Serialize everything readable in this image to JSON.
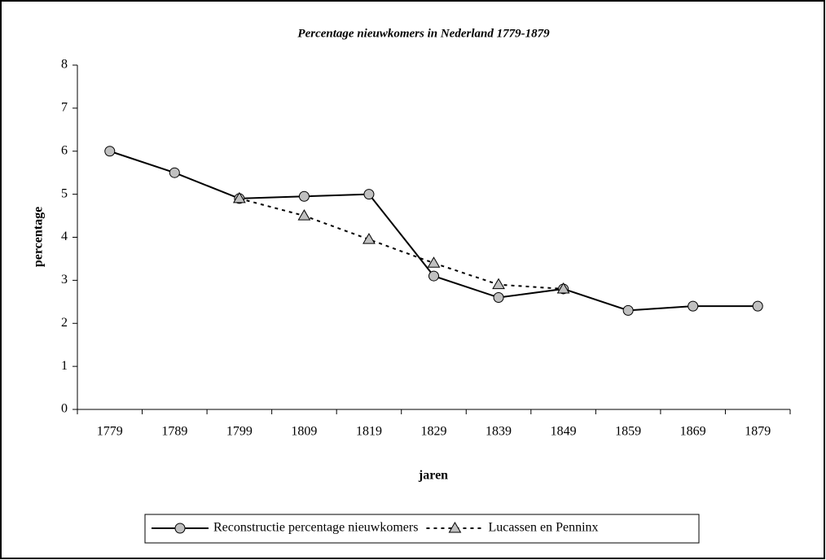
{
  "chart_data": {
    "type": "line",
    "title": "Percentage nieuwkomers in Nederland 1779-1879",
    "x_label": "jaren",
    "y_label": "percentage",
    "categories": [
      "1779",
      "1789",
      "1799",
      "1809",
      "1819",
      "1829",
      "1839",
      "1849",
      "1859",
      "1869",
      "1879"
    ],
    "series": [
      {
        "name": "Reconstructie percentage nieuwkomers",
        "color": "#000000",
        "marker": "circle",
        "marker_color": "#c0c0c0",
        "dashed": false,
        "values": [
          6,
          5.5,
          4.9,
          4.95,
          5,
          3.1,
          2.6,
          2.8,
          2.3,
          2.4,
          2.4
        ]
      },
      {
        "name": "Lucassen en Penninx",
        "color": "#000000",
        "marker": "triangle",
        "marker_color": "#c0c0c0",
        "dashed": true,
        "values": [
          null,
          null,
          4.9,
          4.5,
          3.95,
          3.4,
          2.9,
          2.8,
          null,
          null,
          null
        ]
      }
    ],
    "ylim": [
      0,
      8
    ],
    "yticks": [
      0,
      1,
      2,
      3,
      4,
      5,
      6,
      7,
      8
    ],
    "grid": false,
    "legend": "bottom"
  }
}
